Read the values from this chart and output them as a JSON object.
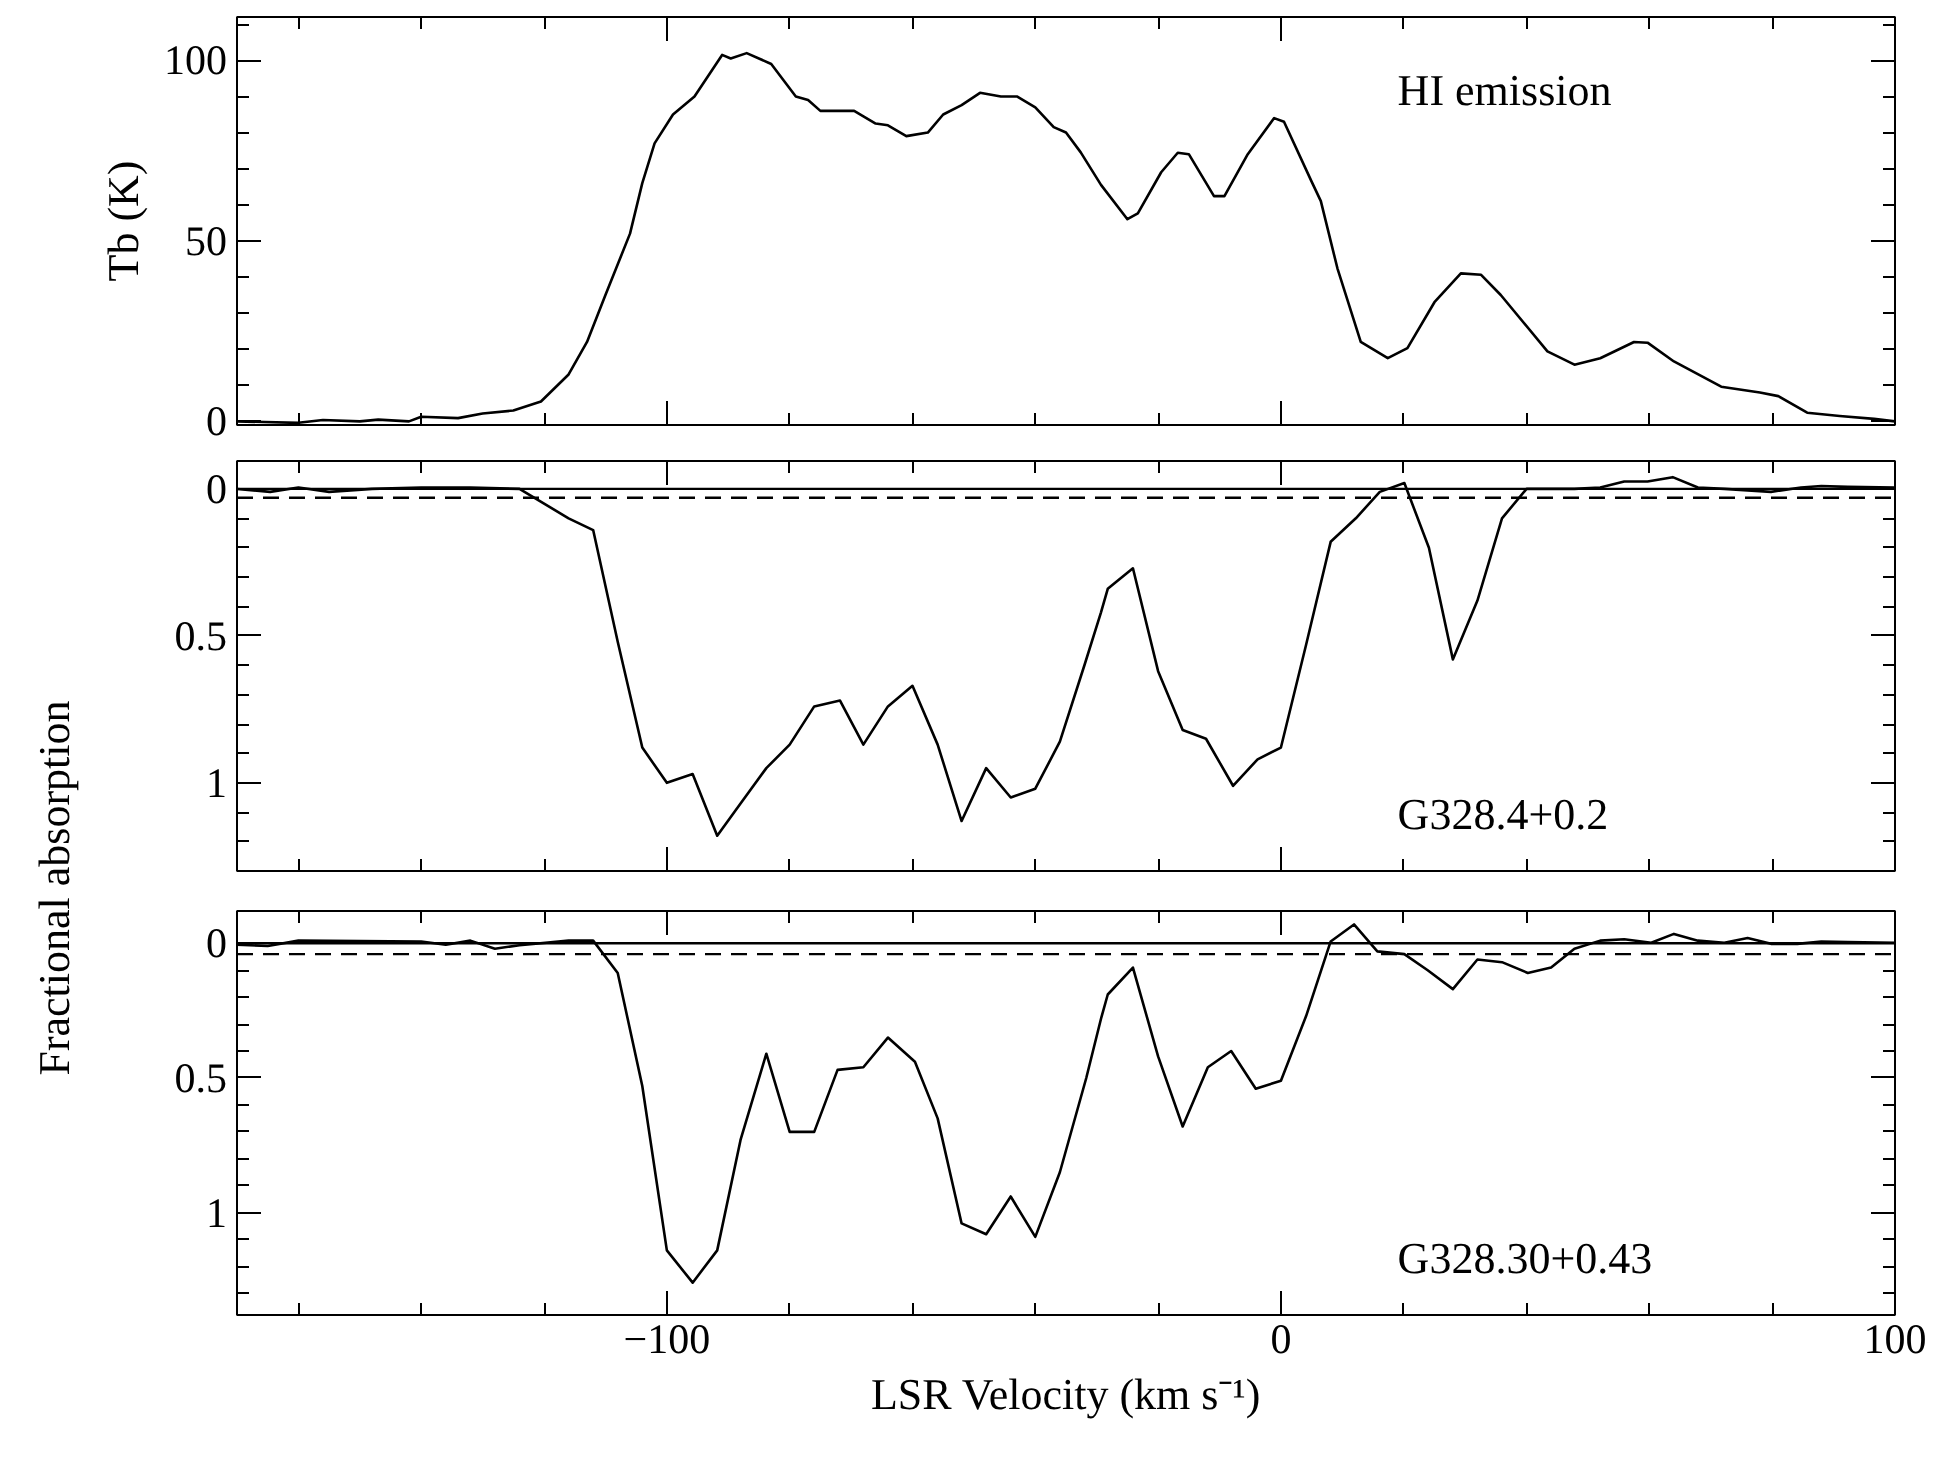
{
  "chart_data": [
    {
      "type": "line",
      "ylabel": "Tb (K)",
      "annotations": [
        "HI emission"
      ],
      "tick_labels": "y",
      "xlim": [
        -170,
        100
      ],
      "ylim": [
        -1,
        112
      ],
      "xticks": [
        {
          "value": -160,
          "label": null
        },
        {
          "value": -140,
          "label": null
        },
        {
          "value": -120,
          "label": null
        },
        -100,
        {
          "value": -80,
          "label": null
        },
        {
          "value": -60,
          "label": null
        },
        {
          "value": -40,
          "label": null
        },
        {
          "value": -20,
          "label": null
        },
        0,
        {
          "value": 20,
          "label": null
        },
        {
          "value": 40,
          "label": null
        },
        {
          "value": 60,
          "label": null
        },
        {
          "value": 80,
          "label": null
        },
        100
      ],
      "yticks": [
        0,
        {
          "value": 10,
          "label": null
        },
        {
          "value": 20,
          "label": null
        },
        {
          "value": 30,
          "label": null
        },
        {
          "value": 40,
          "label": null
        },
        50,
        {
          "value": 60,
          "label": null
        },
        {
          "value": 70,
          "label": null
        },
        {
          "value": 80,
          "label": null
        },
        {
          "value": 90,
          "label": null
        },
        100,
        {
          "value": 110,
          "label": null
        }
      ],
      "series": [
        {
          "color": "#000000",
          "x": [
            -170,
            -160,
            -156,
            -150,
            -147,
            -142,
            -140,
            -134,
            -130,
            -125,
            -120.5,
            -116,
            -113,
            -110,
            -106,
            -104,
            -102,
            -99,
            -95.5,
            -91,
            -89.6,
            -87,
            -83,
            -79,
            -77,
            -75,
            -69.5,
            -66,
            -64,
            -61,
            -57.5,
            -55,
            -52,
            -49,
            -45.6,
            -43,
            -40,
            -37,
            -35,
            -32.6,
            -29.3,
            -25,
            -23.3,
            -19.5,
            -16.8,
            -15,
            -10.9,
            -9.2,
            -5.4,
            -1.1,
            0.5,
            5,
            6.5,
            9.2,
            13,
            17.4,
            20.6,
            25,
            29.3,
            32.6,
            35.8,
            43.4,
            47.8,
            52,
            57.5,
            59.7,
            64,
            71.7,
            78,
            81,
            85.7,
            91,
            96.6,
            100
          ],
          "values": [
            0,
            -0.4,
            0.4,
            0,
            0.5,
            0,
            1.3,
            0.9,
            2.2,
            3,
            5.5,
            13,
            22,
            35,
            52,
            66,
            77,
            85,
            90,
            101.5,
            100.5,
            102,
            99,
            90,
            89,
            86,
            86,
            82.5,
            82,
            79,
            80,
            85,
            87.6,
            91,
            90,
            90,
            87,
            81.5,
            80,
            74.5,
            65.5,
            56,
            57.6,
            69,
            74.4,
            74,
            62.4,
            62.4,
            74,
            84,
            83,
            66.4,
            61,
            42.4,
            22,
            17.5,
            20.3,
            33,
            41,
            40.6,
            35,
            19.4,
            15.7,
            17.5,
            22,
            21.8,
            16.6,
            9.6,
            8,
            7,
            2.4,
            1.5,
            0.7,
            0
          ]
        }
      ]
    },
    {
      "type": "line",
      "ylabel": "Fractional absorption",
      "annotations": [
        "G328.4+0.2"
      ],
      "tick_labels": "y",
      "xlim": [
        -170,
        100
      ],
      "ylim": [
        1.3,
        -0.095
      ],
      "xticks": [
        {
          "value": -160,
          "label": null
        },
        {
          "value": -140,
          "label": null
        },
        {
          "value": -120,
          "label": null
        },
        -100,
        {
          "value": -80,
          "label": null
        },
        {
          "value": -60,
          "label": null
        },
        {
          "value": -40,
          "label": null
        },
        {
          "value": -20,
          "label": null
        },
        0,
        {
          "value": 20,
          "label": null
        },
        {
          "value": 40,
          "label": null
        },
        {
          "value": 60,
          "label": null
        },
        {
          "value": 80,
          "label": null
        },
        100
      ],
      "yticks": [
        0,
        {
          "value": 0.1,
          "label": null
        },
        {
          "value": 0.2,
          "label": null
        },
        {
          "value": 0.3,
          "label": null
        },
        {
          "value": 0.4,
          "label": null
        },
        0.5,
        {
          "value": 0.6,
          "label": null
        },
        {
          "value": 0.7,
          "label": null
        },
        {
          "value": 0.8,
          "label": null
        },
        {
          "value": 0.9,
          "label": null
        },
        1,
        {
          "value": 1.1,
          "label": null
        },
        {
          "value": 1.2,
          "label": null
        }
      ],
      "ref_lines": [
        {
          "axis": "y",
          "value": 0,
          "line_style": "solid"
        },
        {
          "axis": "y",
          "value": 0.03,
          "line_style": "dashed"
        }
      ],
      "series": [
        {
          "color": "#000000",
          "x": [
            -170,
            -164.6,
            -160,
            -155,
            -148,
            -140,
            -132,
            -124,
            -116,
            -112,
            -108,
            -104,
            -100,
            -95.8,
            -91.8,
            -88,
            -83.8,
            -80,
            -76,
            -71.8,
            -68,
            -64,
            -60,
            -55.9,
            -52,
            -48,
            -44,
            -40,
            -36,
            -32,
            -29.3,
            -28.2,
            -24.1,
            -20,
            -16,
            -12.2,
            -7.8,
            -3.8,
            0,
            4.1,
            8.1,
            12.2,
            16.1,
            20.1,
            24.1,
            28,
            32,
            36,
            40,
            47.8,
            52,
            55.9,
            59.7,
            63.8,
            67.9,
            72.2,
            79.8,
            84.7,
            88,
            92.3,
            100
          ],
          "values": [
            0,
            0.01,
            -0.005,
            0.01,
            0,
            -0.005,
            -0.005,
            0,
            0.1,
            0.14,
            0.52,
            0.88,
            1.0,
            0.97,
            1.18,
            1.07,
            0.95,
            0.87,
            0.74,
            0.72,
            0.87,
            0.74,
            0.67,
            0.87,
            1.13,
            0.95,
            1.05,
            1.02,
            0.86,
            0.6,
            0.42,
            0.34,
            0.27,
            0.62,
            0.82,
            0.85,
            1.01,
            0.92,
            0.88,
            0.53,
            0.18,
            0.1,
            0.01,
            -0.02,
            0.2,
            0.58,
            0.38,
            0.1,
            0,
            0,
            -0.005,
            -0.025,
            -0.025,
            -0.04,
            -0.005,
            0,
            0.01,
            -0.005,
            -0.01,
            -0.007,
            -0.005
          ]
        }
      ]
    },
    {
      "type": "line",
      "xlabel": "LSR Velocity (km s⁻¹)",
      "annotations": [
        "G328.30+0.43"
      ],
      "xlim": [
        -170,
        100
      ],
      "ylim": [
        1.38,
        -0.12
      ],
      "xticks": [
        {
          "value": -160,
          "label": null
        },
        {
          "value": -140,
          "label": null
        },
        {
          "value": -120,
          "label": null
        },
        {
          "value": -100,
          "label": "−100"
        },
        {
          "value": -80,
          "label": null
        },
        {
          "value": -60,
          "label": null
        },
        {
          "value": -40,
          "label": null
        },
        {
          "value": -20,
          "label": null
        },
        0,
        {
          "value": 20,
          "label": null
        },
        {
          "value": 40,
          "label": null
        },
        {
          "value": 60,
          "label": null
        },
        {
          "value": 80,
          "label": null
        },
        100
      ],
      "yticks": [
        0,
        {
          "value": 0.1,
          "label": null
        },
        {
          "value": 0.2,
          "label": null
        },
        {
          "value": 0.3,
          "label": null
        },
        {
          "value": 0.4,
          "label": null
        },
        0.5,
        {
          "value": 0.6,
          "label": null
        },
        {
          "value": 0.7,
          "label": null
        },
        {
          "value": 0.8,
          "label": null
        },
        {
          "value": 0.9,
          "label": null
        },
        1,
        {
          "value": 1.1,
          "label": null
        },
        {
          "value": 1.2,
          "label": null
        },
        {
          "value": 1.3,
          "label": null
        }
      ],
      "ref_lines": [
        {
          "axis": "y",
          "value": 0,
          "line_style": "solid"
        },
        {
          "axis": "y",
          "value": 0.04,
          "line_style": "dashed"
        }
      ],
      "series": [
        {
          "color": "#000000",
          "x": [
            -170,
            -165,
            -160,
            -140,
            -136,
            -132,
            -128,
            -124,
            -116,
            -112,
            -108,
            -104,
            -100,
            -95.8,
            -91.8,
            -88,
            -83.8,
            -80,
            -76,
            -72.2,
            -68,
            -64,
            -59.6,
            -55.9,
            -52,
            -48,
            -44,
            -40,
            -36,
            -31.7,
            -29.3,
            -28.2,
            -24.1,
            -20,
            -16,
            -11.9,
            -8.1,
            -4.1,
            0,
            4.1,
            8.1,
            11.9,
            15.7,
            20.1,
            23.9,
            28,
            32,
            36,
            40.2,
            44,
            47.8,
            52,
            55.9,
            60.3,
            64,
            67.9,
            72.2,
            76,
            79.8,
            84.1,
            88,
            92.3,
            100
          ],
          "values": [
            0.005,
            0.01,
            -0.01,
            -0.007,
            0.005,
            -0.01,
            0.02,
            0.007,
            -0.01,
            -0.01,
            0.11,
            0.53,
            1.14,
            1.26,
            1.14,
            0.73,
            0.41,
            0.7,
            0.7,
            0.47,
            0.46,
            0.35,
            0.44,
            0.65,
            1.04,
            1.08,
            0.94,
            1.09,
            0.85,
            0.5,
            0.28,
            0.19,
            0.09,
            0.42,
            0.68,
            0.46,
            0.4,
            0.54,
            0.51,
            0.27,
            -0.007,
            -0.07,
            0.03,
            0.04,
            0.1,
            0.17,
            0.06,
            0.07,
            0.11,
            0.09,
            0.02,
            -0.01,
            -0.015,
            -0.002,
            -0.035,
            -0.01,
            -0.002,
            -0.02,
            0.002,
            0.002,
            -0.007,
            -0.005,
            -0.002
          ]
        }
      ]
    }
  ]
}
